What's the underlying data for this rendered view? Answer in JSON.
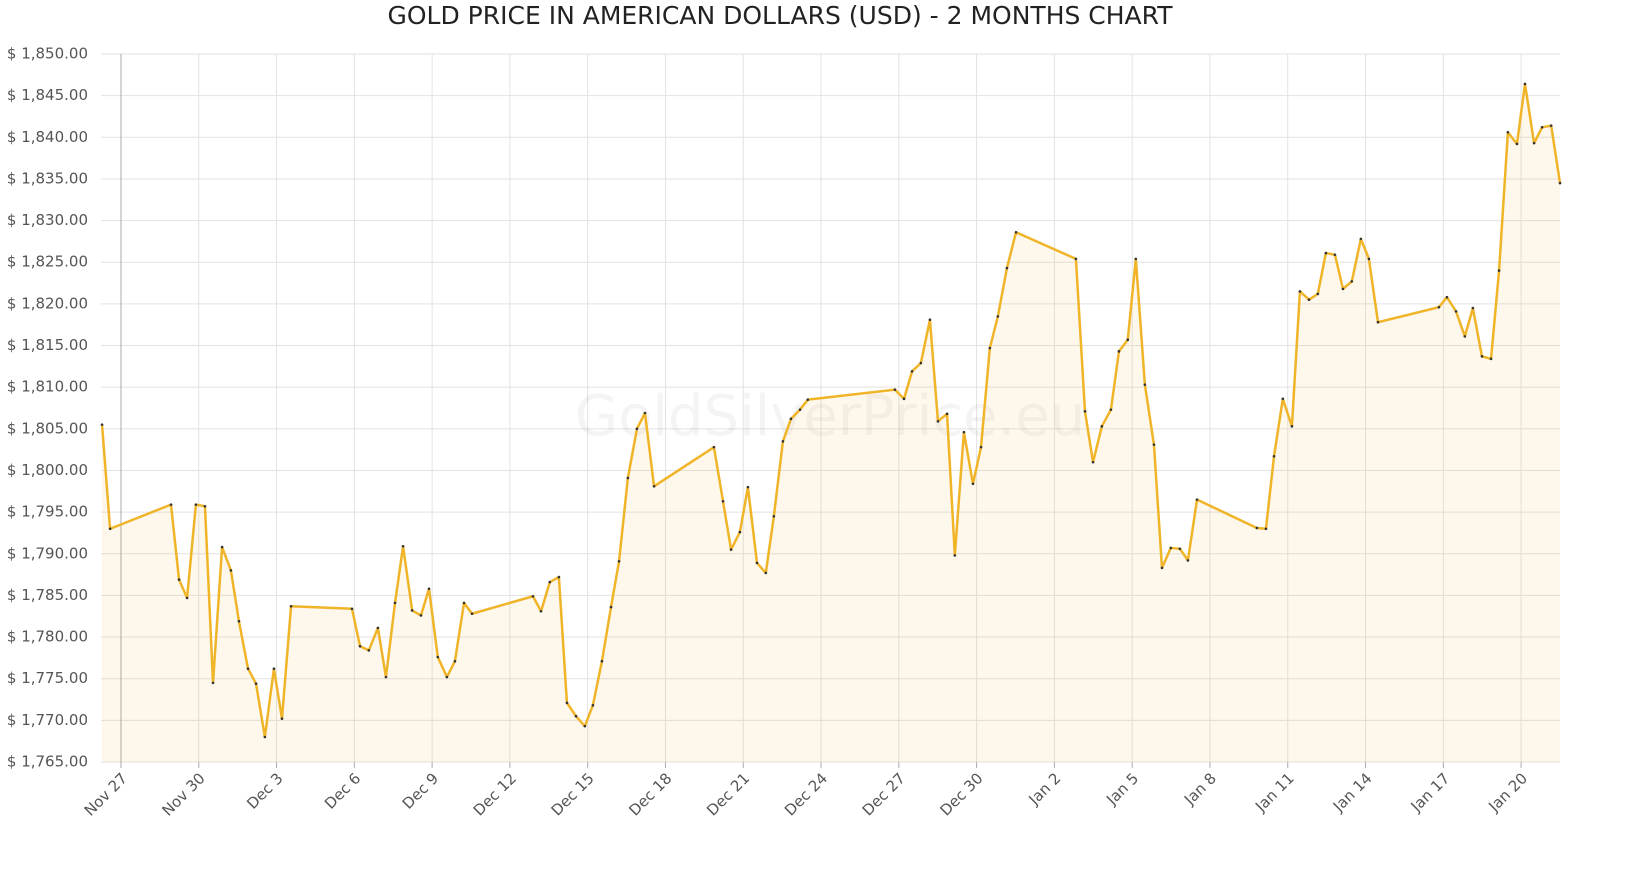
{
  "chart_data": {
    "type": "line",
    "title": "GOLD PRICE IN AMERICAN DOLLARS (USD) - 2 MONTHS CHART",
    "watermark": "GoldSilverPrice.eu",
    "x": [
      -0.73,
      -0.42,
      1.93,
      2.24,
      2.55,
      2.89,
      3.24,
      3.55,
      3.9,
      4.24,
      4.55,
      4.9,
      5.21,
      5.55,
      5.9,
      6.21,
      6.56,
      8.91,
      9.22,
      9.56,
      9.91,
      10.22,
      10.57,
      10.88,
      11.23,
      11.57,
      11.88,
      12.22,
      12.57,
      12.88,
      13.23,
      13.54,
      15.89,
      16.2,
      16.54,
      16.89,
      17.2,
      17.55,
      17.89,
      18.2,
      18.55,
      18.9,
      19.21,
      19.55,
      19.9,
      20.21,
      20.56,
      22.87,
      23.22,
      23.53,
      23.87,
      24.18,
      24.53,
      24.87,
      25.18,
      25.53,
      25.84,
      26.19,
      26.49,
      29.85,
      30.2,
      30.51,
      30.85,
      31.2,
      31.51,
      31.86,
      32.16,
      32.51,
      32.86,
      33.17,
      33.51,
      33.82,
      34.17,
      34.52,
      36.83,
      37.18,
      37.49,
      37.83,
      38.18,
      38.49,
      38.83,
      39.14,
      39.49,
      39.84,
      40.15,
      40.49,
      40.84,
      41.15,
      41.5,
      43.81,
      44.16,
      44.47,
      44.81,
      45.16,
      45.47,
      45.82,
      46.16,
      46.47,
      46.82,
      47.13,
      47.47,
      47.82,
      48.13,
      48.48,
      50.83,
      51.14,
      51.49,
      51.83,
      52.14,
      52.49,
      52.84,
      53.15,
      53.49,
      53.84,
      54.15,
      54.5,
      54.81,
      55.16,
      55.5
    ],
    "series": [
      {
        "name": "Gold",
        "color": "#f0b429",
        "values": [
          1805.5,
          1793.0,
          1795.9,
          1786.9,
          1784.7,
          1795.9,
          1795.7,
          1774.5,
          1790.8,
          1788.0,
          1781.9,
          1776.2,
          1774.4,
          1768.0,
          1776.2,
          1770.2,
          1783.7,
          1783.4,
          1778.9,
          1778.4,
          1781.1,
          1775.2,
          1784.1,
          1790.9,
          1783.2,
          1782.6,
          1785.8,
          1777.6,
          1775.2,
          1777.1,
          1784.1,
          1782.8,
          1784.9,
          1783.1,
          1786.6,
          1787.2,
          1772.1,
          1770.5,
          1769.3,
          1771.8,
          1777.1,
          1783.6,
          1789.1,
          1799.1,
          1805.0,
          1806.9,
          1798.1,
          1802.8,
          1796.3,
          1790.5,
          1792.6,
          1798.0,
          1788.9,
          1787.7,
          1794.5,
          1803.5,
          1806.2,
          1807.3,
          1808.5,
          1809.7,
          1808.6,
          1811.9,
          1812.9,
          1818.1,
          1805.9,
          1806.8,
          1789.8,
          1804.6,
          1798.4,
          1802.8,
          1814.7,
          1818.5,
          1824.3,
          1828.6,
          1825.4,
          1807.1,
          1801.0,
          1805.3,
          1807.3,
          1814.3,
          1815.7,
          1825.4,
          1810.3,
          1803.1,
          1788.3,
          1790.7,
          1790.6,
          1789.2,
          1796.5,
          1793.1,
          1793.0,
          1801.7,
          1808.6,
          1805.3,
          1821.5,
          1820.5,
          1821.2,
          1826.1,
          1825.9,
          1821.8,
          1822.7,
          1827.8,
          1825.4,
          1817.8,
          1819.6,
          1820.8,
          1819.1,
          1816.1,
          1819.5,
          1813.7,
          1813.4,
          1824.0,
          1840.6,
          1839.2,
          1846.4,
          1839.3,
          1841.2,
          1841.4,
          1834.5
        ]
      }
    ],
    "xlim": [
      -0.77,
      55.5
    ],
    "xticks": [
      {
        "value": 0,
        "label": "Nov 27"
      },
      {
        "value": 3,
        "label": "Nov 30"
      },
      {
        "value": 6,
        "label": "Dec 3"
      },
      {
        "value": 9,
        "label": "Dec 6"
      },
      {
        "value": 12,
        "label": "Dec 9"
      },
      {
        "value": 15,
        "label": "Dec 12"
      },
      {
        "value": 18,
        "label": "Dec 15"
      },
      {
        "value": 21,
        "label": "Dec 18"
      },
      {
        "value": 24,
        "label": "Dec 21"
      },
      {
        "value": 27,
        "label": "Dec 24"
      },
      {
        "value": 30,
        "label": "Dec 27"
      },
      {
        "value": 33,
        "label": "Dec 30"
      },
      {
        "value": 36,
        "label": "Jan 2"
      },
      {
        "value": 39,
        "label": "Jan 5"
      },
      {
        "value": 42,
        "label": "Jan 8"
      },
      {
        "value": 45,
        "label": "Jan 11"
      },
      {
        "value": 48,
        "label": "Jan 14"
      },
      {
        "value": 51,
        "label": "Jan 17"
      },
      {
        "value": 54,
        "label": "Jan 20"
      }
    ],
    "ylim": [
      1765,
      1850
    ],
    "yticks": [
      {
        "value": 1765,
        "label": "$ 1,765.00"
      },
      {
        "value": 1770,
        "label": "$ 1,770.00"
      },
      {
        "value": 1775,
        "label": "$ 1,775.00"
      },
      {
        "value": 1780,
        "label": "$ 1,780.00"
      },
      {
        "value": 1785,
        "label": "$ 1,785.00"
      },
      {
        "value": 1790,
        "label": "$ 1,790.00"
      },
      {
        "value": 1795,
        "label": "$ 1,795.00"
      },
      {
        "value": 1800,
        "label": "$ 1,800.00"
      },
      {
        "value": 1805,
        "label": "$ 1,805.00"
      },
      {
        "value": 1810,
        "label": "$ 1,810.00"
      },
      {
        "value": 1815,
        "label": "$ 1,815.00"
      },
      {
        "value": 1820,
        "label": "$ 1,820.00"
      },
      {
        "value": 1825,
        "label": "$ 1,825.00"
      },
      {
        "value": 1830,
        "label": "$ 1,830.00"
      },
      {
        "value": 1835,
        "label": "$ 1,835.00"
      },
      {
        "value": 1840,
        "label": "$ 1,840.00"
      },
      {
        "value": 1845,
        "label": "$ 1,845.00"
      },
      {
        "value": 1850,
        "label": "$ 1,850.00"
      }
    ],
    "grid": true
  }
}
